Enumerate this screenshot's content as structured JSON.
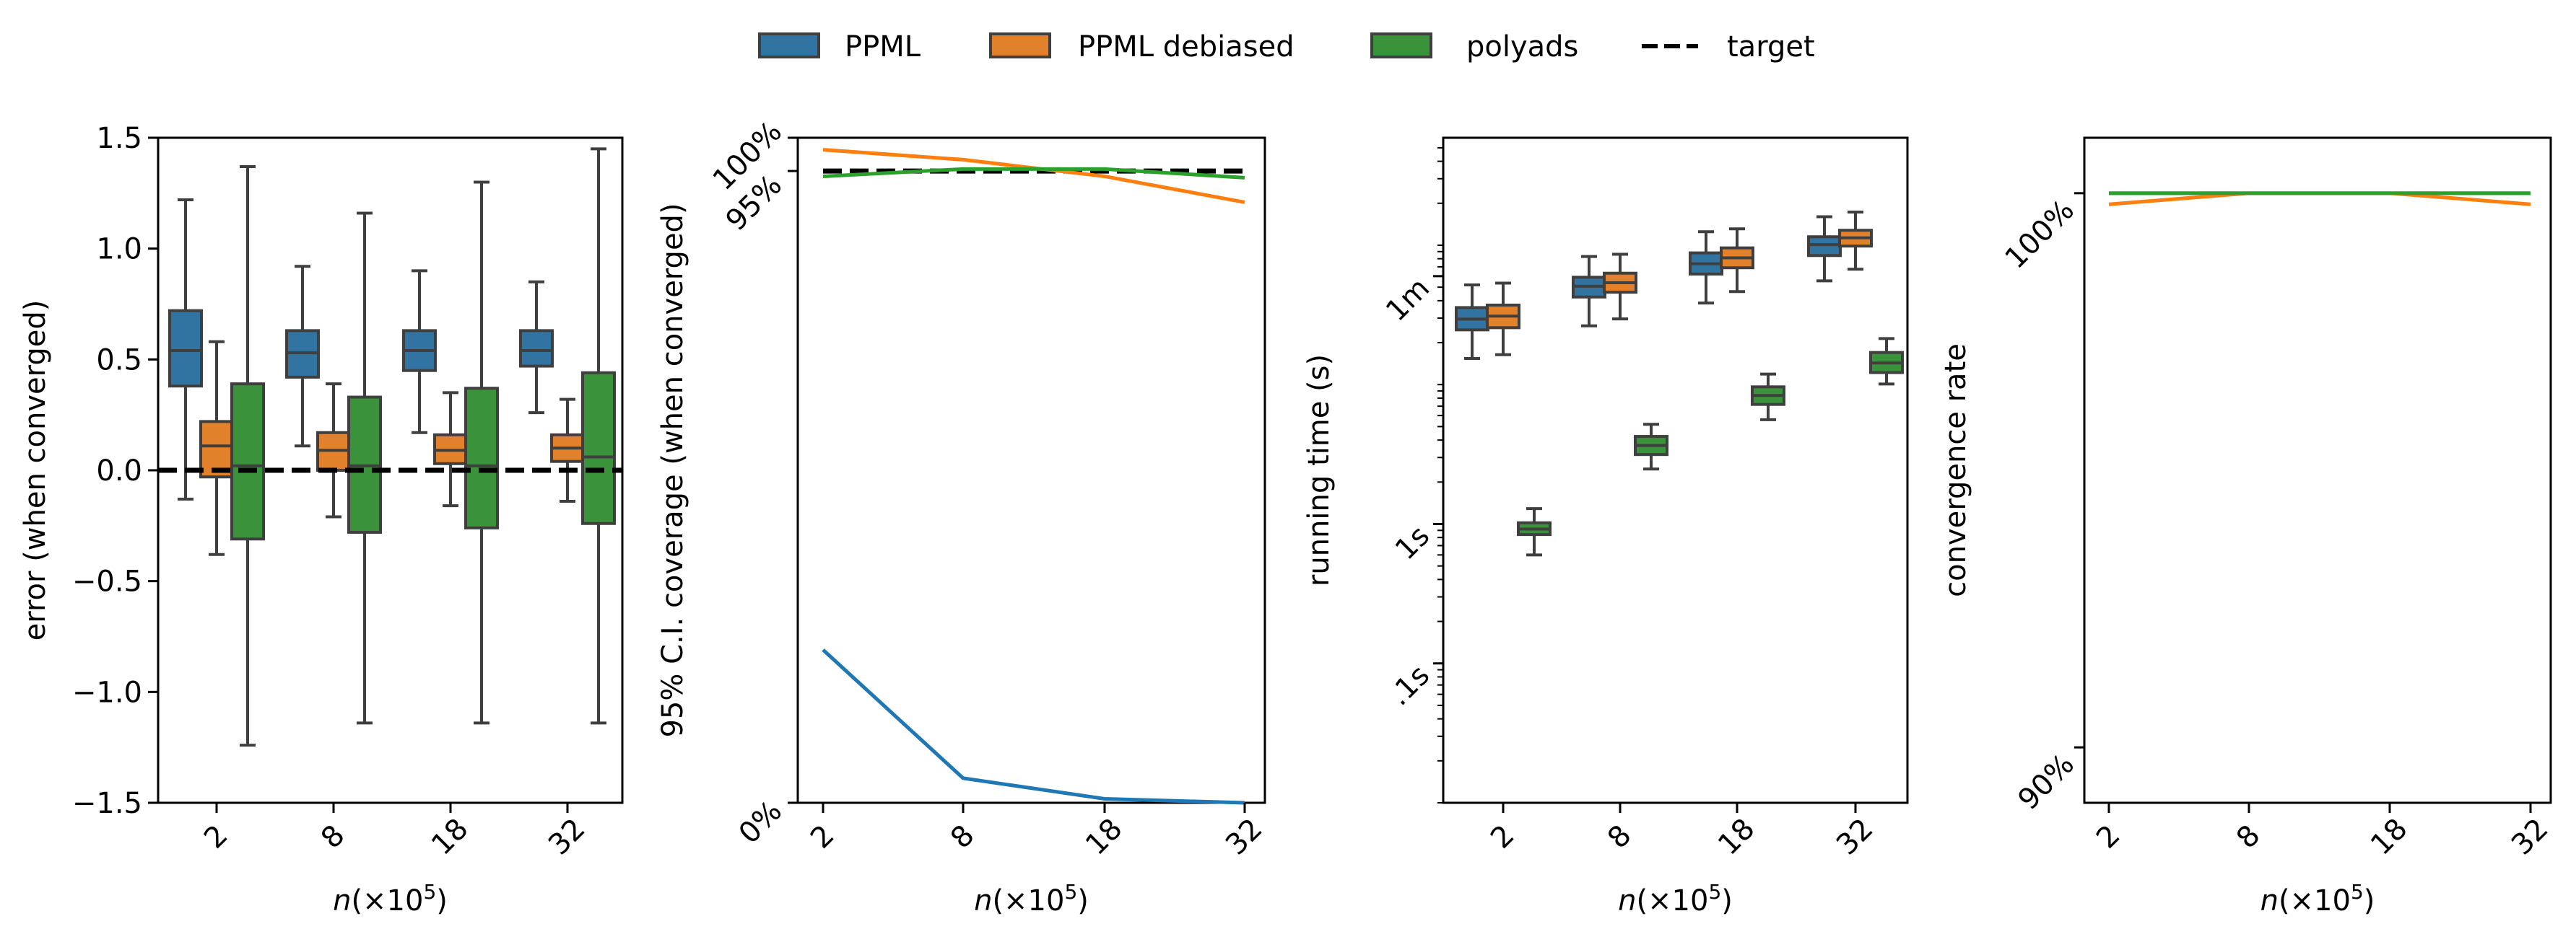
{
  "legend": {
    "items": [
      {
        "label": "PPML",
        "type": "patch",
        "color": "#3274a1"
      },
      {
        "label": "PPML debiased",
        "type": "patch",
        "color": "#e1812c"
      },
      {
        "label": "polyads",
        "type": "patch",
        "color": "#3a923a"
      },
      {
        "label": "target",
        "type": "dashed-line",
        "color": "#000000"
      }
    ]
  },
  "colors": {
    "ppml_box": "#3274a1",
    "debiased_box": "#e1812c",
    "polyads_box": "#3a923a",
    "ppml_line": "#1f77b4",
    "debiased_line": "#ff7f0e",
    "polyads_line": "#2ca02c",
    "box_edge": "#3f3f3f",
    "target": "#000000"
  },
  "panels": {
    "error": {
      "ylabel": "error (when converged)",
      "xlabel_prefix": "n",
      "xlabel_suffix": "(×10",
      "xlabel_exp": "5",
      "xlabel_close": ")",
      "yticks": [
        "1.5",
        "1.0",
        "0.5",
        "0.0",
        "−0.5",
        "−1.0",
        "−1.5"
      ],
      "xticks": [
        "2",
        "8",
        "18",
        "32"
      ]
    },
    "coverage": {
      "ylabel": "95% C.I. coverage (when converged)",
      "xlabel_prefix": "n",
      "xlabel_suffix": "(×10",
      "xlabel_exp": "5",
      "xlabel_close": ")",
      "yticks": [
        "100%",
        "95%",
        "0%"
      ],
      "xticks": [
        "2",
        "8",
        "18",
        "32"
      ]
    },
    "runtime": {
      "ylabel": "running time (s)",
      "xlabel_prefix": "n",
      "xlabel_suffix": "(×10",
      "xlabel_exp": "5",
      "xlabel_close": ")",
      "yticks": [
        "1m",
        "1s",
        ".1s"
      ],
      "xticks": [
        "2",
        "8",
        "18",
        "32"
      ]
    },
    "convergence": {
      "ylabel": "convergence rate",
      "xlabel_prefix": "n",
      "xlabel_suffix": "(×10",
      "xlabel_exp": "5",
      "xlabel_close": ")",
      "yticks": [
        "100%",
        "90%"
      ],
      "xticks": [
        "2",
        "8",
        "18",
        "32"
      ]
    }
  },
  "chart_data": [
    {
      "type": "box",
      "title": "",
      "xlabel": "n(×10^5)",
      "ylabel": "error (when converged)",
      "ylim": [
        -1.5,
        1.5
      ],
      "categories": [
        "2",
        "8",
        "18",
        "32"
      ],
      "reference_line": {
        "name": "target",
        "y": 0.0,
        "style": "dashed"
      },
      "series": [
        {
          "name": "PPML",
          "boxes": [
            {
              "whisker_low": -0.13,
              "q1": 0.38,
              "median": 0.54,
              "q3": 0.72,
              "whisker_high": 1.22
            },
            {
              "whisker_low": 0.11,
              "q1": 0.42,
              "median": 0.53,
              "q3": 0.63,
              "whisker_high": 0.92
            },
            {
              "whisker_low": 0.17,
              "q1": 0.45,
              "median": 0.54,
              "q3": 0.63,
              "whisker_high": 0.9
            },
            {
              "whisker_low": 0.26,
              "q1": 0.47,
              "median": 0.54,
              "q3": 0.63,
              "whisker_high": 0.85
            }
          ]
        },
        {
          "name": "PPML debiased",
          "boxes": [
            {
              "whisker_low": -0.38,
              "q1": -0.03,
              "median": 0.11,
              "q3": 0.22,
              "whisker_high": 0.58
            },
            {
              "whisker_low": -0.21,
              "q1": 0.0,
              "median": 0.09,
              "q3": 0.17,
              "whisker_high": 0.39
            },
            {
              "whisker_low": -0.16,
              "q1": 0.03,
              "median": 0.09,
              "q3": 0.16,
              "whisker_high": 0.35
            },
            {
              "whisker_low": -0.14,
              "q1": 0.04,
              "median": 0.1,
              "q3": 0.16,
              "whisker_high": 0.32
            }
          ]
        },
        {
          "name": "polyads",
          "boxes": [
            {
              "whisker_low": -1.24,
              "q1": -0.31,
              "median": 0.02,
              "q3": 0.39,
              "whisker_high": 1.37
            },
            {
              "whisker_low": -1.14,
              "q1": -0.28,
              "median": 0.02,
              "q3": 0.33,
              "whisker_high": 1.16
            },
            {
              "whisker_low": -1.14,
              "q1": -0.26,
              "median": 0.02,
              "q3": 0.37,
              "whisker_high": 1.3
            },
            {
              "whisker_low": -1.14,
              "q1": -0.24,
              "median": 0.06,
              "q3": 0.44,
              "whisker_high": 1.45
            }
          ]
        }
      ],
      "grid": false
    },
    {
      "type": "line",
      "title": "",
      "xlabel": "n(×10^5)",
      "ylabel": "95% C.I. coverage (when converged)",
      "ylim": [
        0,
        100
      ],
      "yunit": "%",
      "categories": [
        "2",
        "8",
        "18",
        "32"
      ],
      "reference_line": {
        "name": "target",
        "y": 95,
        "style": "dashed"
      },
      "series": [
        {
          "name": "PPML",
          "values": [
            23.0,
            3.7,
            0.6,
            0.0
          ]
        },
        {
          "name": "PPML debiased",
          "values": [
            98.2,
            96.7,
            94.2,
            90.3
          ]
        },
        {
          "name": "polyads",
          "values": [
            94.2,
            95.3,
            95.3,
            94.0
          ]
        }
      ],
      "grid": false
    },
    {
      "type": "box",
      "title": "",
      "xlabel": "n(×10^5)",
      "ylabel": "running time (s)",
      "yscale": "log",
      "ylim_seconds": [
        0.01,
        590
      ],
      "ytick_values_seconds": {
        "1m": 60,
        "1s": 1,
        ".1s": 0.1
      },
      "categories": [
        "2",
        "8",
        "18",
        "32"
      ],
      "series": [
        {
          "name": "PPML",
          "boxes": [
            {
              "whisker_low": 15.4,
              "q1": 24.7,
              "median": 29.5,
              "q3": 35.7,
              "whisker_high": 51.9
            },
            {
              "whisker_low": 26.4,
              "q1": 42.5,
              "median": 50.8,
              "q3": 58.9,
              "whisker_high": 83.0
            },
            {
              "whisker_low": 38.5,
              "q1": 62.1,
              "median": 73.6,
              "q3": 88.1,
              "whisker_high": 125.0
            },
            {
              "whisker_low": 55.5,
              "q1": 84.3,
              "median": 101.0,
              "q3": 115.0,
              "whisker_high": 160.0
            }
          ]
        },
        {
          "name": "PPML debiased",
          "boxes": [
            {
              "whisker_low": 16.4,
              "q1": 25.6,
              "median": 31.0,
              "q3": 37.2,
              "whisker_high": 53.5
            },
            {
              "whisker_low": 29.6,
              "q1": 46.0,
              "median": 53.8,
              "q3": 63.0,
              "whisker_high": 86.1
            },
            {
              "whisker_low": 46.5,
              "q1": 68.9,
              "median": 81.1,
              "q3": 95.7,
              "whisker_high": 131.0
            },
            {
              "whisker_low": 67.3,
              "q1": 98.6,
              "median": 113.0,
              "q3": 128.0,
              "whisker_high": 173.0
            }
          ]
        },
        {
          "name": "polyads",
          "boxes": [
            {
              "whisker_low": 0.6,
              "q1": 0.84,
              "median": 0.92,
              "q3": 1.02,
              "whisker_high": 1.29
            },
            {
              "whisker_low": 2.48,
              "q1": 3.15,
              "median": 3.66,
              "q3": 4.25,
              "whisker_high": 5.19
            },
            {
              "whisker_low": 5.6,
              "q1": 7.21,
              "median": 8.36,
              "q3": 9.64,
              "whisker_high": 11.9
            },
            {
              "whisker_low": 10.1,
              "q1": 12.2,
              "median": 14.3,
              "q3": 17.0,
              "whisker_high": 21.4
            }
          ]
        }
      ],
      "grid": false
    },
    {
      "type": "line",
      "title": "",
      "xlabel": "n(×10^5)",
      "ylabel": "convergence rate",
      "ylim": [
        89,
        101
      ],
      "yunit": "%",
      "categories": [
        "2",
        "8",
        "18",
        "32"
      ],
      "series": [
        {
          "name": "PPML",
          "values": [
            100,
            100,
            100,
            100
          ]
        },
        {
          "name": "PPML debiased",
          "values": [
            99.8,
            100,
            100,
            99.8
          ]
        },
        {
          "name": "polyads",
          "values": [
            100,
            100,
            100,
            100
          ]
        }
      ],
      "grid": false
    }
  ]
}
